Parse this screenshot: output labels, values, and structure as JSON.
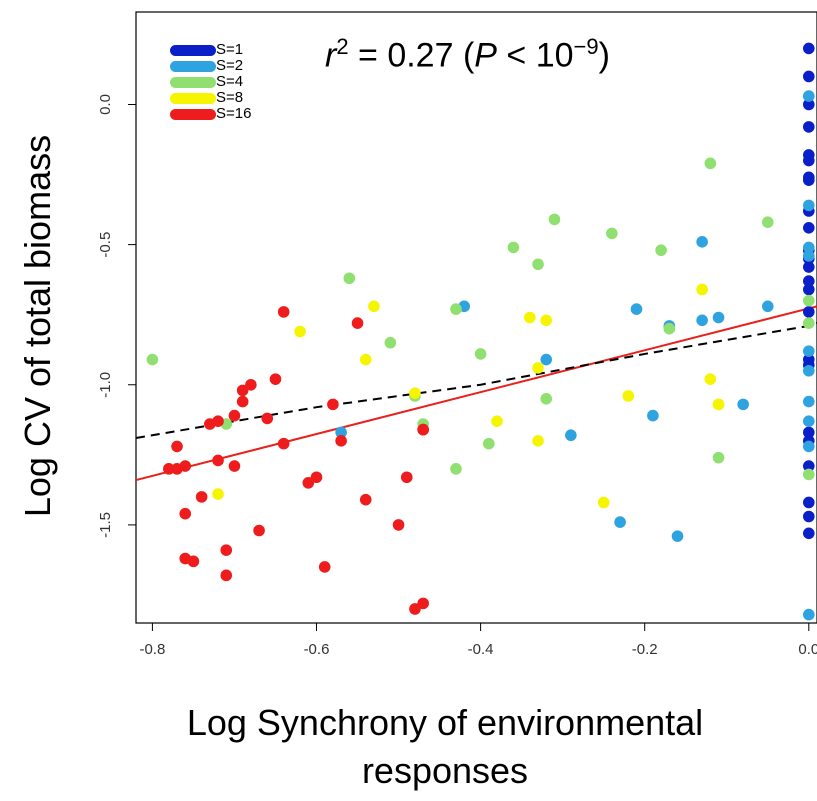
{
  "chart_data": {
    "type": "scatter",
    "xlabel_line1": "Log Synchrony of environmental",
    "xlabel_line2": "responses",
    "ylabel": "Log CV of total biomass",
    "annotation": {
      "r": "r",
      "r_exp": "2",
      "eq": " = 0.27 (",
      "p": "P",
      "lt": " < 10",
      "p_exp": "−9",
      "close": ")"
    },
    "xlim": [
      -0.82,
      0.01
    ],
    "ylim": [
      -1.85,
      0.33
    ],
    "xticks": [
      -0.8,
      -0.6,
      -0.4,
      -0.2,
      0.0
    ],
    "xtick_labels": [
      "-0.8",
      "-0.6",
      "-0.4",
      "-0.2",
      "0.0"
    ],
    "yticks": [
      0.0,
      -0.5,
      -1.0,
      -1.5
    ],
    "ytick_labels": [
      "0.0",
      "-0.5",
      "-1.0",
      "-1.5"
    ],
    "legend": [
      {
        "label": "S=1",
        "color": "#0b1fc9"
      },
      {
        "label": "S=2",
        "color": "#2ea3e0"
      },
      {
        "label": "S=4",
        "color": "#8fe070"
      },
      {
        "label": "S=8",
        "color": "#f5f500"
      },
      {
        "label": "S=16",
        "color": "#ee1c1c"
      }
    ],
    "fit_line": {
      "color": "#e8211b",
      "x": [
        -0.82,
        0.01
      ],
      "y": [
        -1.34,
        -0.72
      ]
    },
    "loess_line": {
      "color": "#000000",
      "x": [
        -0.82,
        -0.6,
        -0.4,
        -0.2,
        0.0,
        0.01
      ],
      "y": [
        -1.19,
        -1.08,
        -1.0,
        -0.89,
        -0.79,
        -0.78
      ]
    },
    "series": [
      {
        "name": "S=1",
        "color": "#0b1fc9",
        "x": [
          0,
          0,
          0,
          0,
          0,
          0,
          0,
          0,
          0,
          0,
          0,
          0,
          0,
          0,
          0,
          0,
          0,
          0,
          0,
          0,
          0,
          0,
          0,
          0
        ],
        "y": [
          0.2,
          0.1,
          0.0,
          -0.08,
          -0.18,
          -0.2,
          -0.26,
          -0.27,
          -0.38,
          -0.44,
          -0.52,
          -0.55,
          -0.58,
          -0.63,
          -0.66,
          -0.74,
          -0.91,
          -0.93,
          -1.17,
          -1.2,
          -1.29,
          -1.42,
          -1.47,
          -1.53
        ]
      },
      {
        "name": "S=2",
        "color": "#2ea3e0",
        "x": [
          0,
          0,
          0,
          0,
          0,
          0,
          0,
          0,
          0,
          0,
          -0.42,
          -0.32,
          -0.29,
          -0.21,
          -0.19,
          -0.17,
          -0.16,
          -0.13,
          -0.13,
          -0.11,
          -0.08,
          -0.05,
          -0.23,
          -0.57
        ],
        "y": [
          0.03,
          -0.36,
          -0.51,
          -0.54,
          -0.88,
          -0.95,
          -1.06,
          -1.13,
          -1.22,
          -1.82,
          -0.72,
          -0.91,
          -1.18,
          -0.73,
          -1.11,
          -0.79,
          -1.54,
          -0.77,
          -0.49,
          -0.76,
          -1.07,
          -0.72,
          -1.49,
          -1.17
        ]
      },
      {
        "name": "S=4",
        "color": "#8fe070",
        "x": [
          -0.8,
          -0.71,
          -0.56,
          -0.51,
          -0.48,
          -0.47,
          -0.43,
          -0.43,
          -0.4,
          -0.39,
          -0.36,
          -0.33,
          -0.32,
          -0.31,
          -0.24,
          -0.18,
          -0.17,
          -0.12,
          -0.11,
          -0.05,
          0,
          0,
          0
        ],
        "y": [
          -0.91,
          -1.14,
          -0.62,
          -0.85,
          -1.04,
          -1.14,
          -0.73,
          -1.3,
          -0.89,
          -1.21,
          -0.51,
          -0.57,
          -1.05,
          -0.41,
          -0.46,
          -0.52,
          -0.8,
          -0.21,
          -1.26,
          -0.42,
          -0.7,
          -0.78,
          -1.32
        ]
      },
      {
        "name": "S=8",
        "color": "#f5f500",
        "x": [
          -0.72,
          -0.62,
          -0.54,
          -0.53,
          -0.48,
          -0.38,
          -0.34,
          -0.33,
          -0.33,
          -0.32,
          -0.25,
          -0.22,
          -0.13,
          -0.12,
          -0.11,
          -0.11
        ],
        "y": [
          -1.39,
          -0.81,
          -0.91,
          -0.72,
          -1.03,
          -1.13,
          -0.76,
          -0.94,
          -1.2,
          -0.77,
          -1.42,
          -1.04,
          -0.66,
          -0.98,
          -1.07,
          -1.07
        ]
      },
      {
        "name": "S=16",
        "color": "#ee1c1c",
        "x": [
          -0.78,
          -0.77,
          -0.77,
          -0.76,
          -0.76,
          -0.76,
          -0.75,
          -0.74,
          -0.73,
          -0.72,
          -0.72,
          -0.71,
          -0.71,
          -0.7,
          -0.7,
          -0.69,
          -0.69,
          -0.68,
          -0.67,
          -0.66,
          -0.65,
          -0.64,
          -0.64,
          -0.61,
          -0.6,
          -0.59,
          -0.58,
          -0.57,
          -0.55,
          -0.54,
          -0.5,
          -0.49,
          -0.48,
          -0.47,
          -0.47,
          -0.47
        ],
        "y": [
          -1.3,
          -1.3,
          -1.22,
          -1.46,
          -1.62,
          -1.29,
          -1.63,
          -1.4,
          -1.14,
          -1.27,
          -1.13,
          -1.59,
          -1.68,
          -1.11,
          -1.29,
          -1.06,
          -1.02,
          -1.0,
          -1.52,
          -1.12,
          -0.98,
          -0.74,
          -1.21,
          -1.35,
          -1.33,
          -1.65,
          -1.07,
          -1.2,
          -0.78,
          -1.41,
          -1.5,
          -1.33,
          -1.8,
          -1.78,
          -1.16,
          -1.16
        ]
      }
    ]
  }
}
